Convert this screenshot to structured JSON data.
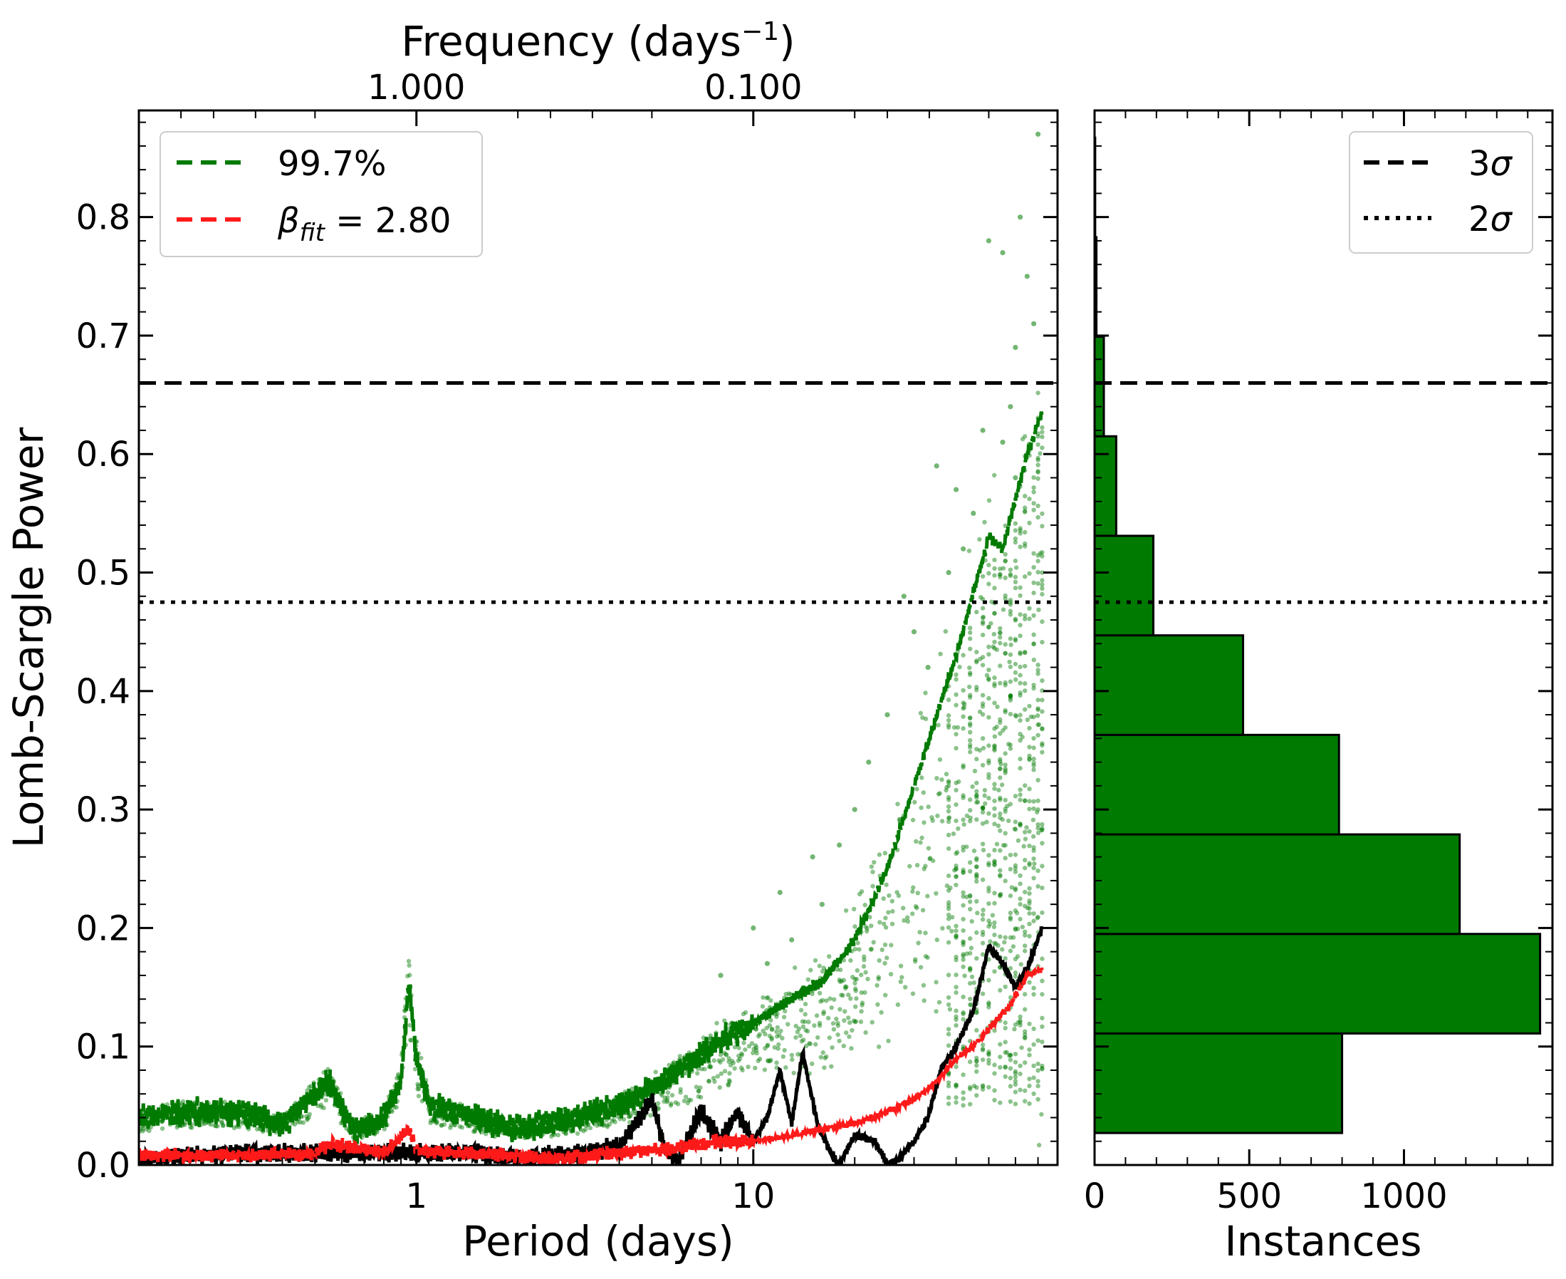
{
  "colors": {
    "green": "#007a00",
    "red": "#ff1a1a",
    "black": "#000000",
    "white": "#ffffff"
  },
  "chart_data": [
    {
      "type": "scatter",
      "title": "",
      "xlabel": "Period (days)",
      "ylabel": "Lomb-Scargle Power",
      "xscale": "log",
      "xlim": [
        0.15,
        80
      ],
      "ylim": [
        0,
        0.89
      ],
      "xticks": [
        {
          "value": 1,
          "label": "1"
        },
        {
          "value": 10,
          "label": "10"
        }
      ],
      "yticks": [
        {
          "value": 0.0,
          "label": "0.0"
        },
        {
          "value": 0.1,
          "label": "0.1"
        },
        {
          "value": 0.2,
          "label": "0.2"
        },
        {
          "value": 0.3,
          "label": "0.3"
        },
        {
          "value": 0.4,
          "label": "0.4"
        },
        {
          "value": 0.5,
          "label": "0.5"
        },
        {
          "value": 0.6,
          "label": "0.6"
        },
        {
          "value": 0.7,
          "label": "0.7"
        },
        {
          "value": 0.8,
          "label": "0.8"
        }
      ],
      "top_axis": {
        "label": "Frequency (days",
        "label_exponent": "−1",
        "label_suffix": ")",
        "ticks": [
          {
            "period": 1,
            "label": "1.000"
          },
          {
            "period": 10,
            "label": "0.100"
          }
        ]
      },
      "legend": {
        "position": "top-left",
        "entries": [
          {
            "label": "99.7%",
            "color": "#007a00",
            "style": "dashed"
          },
          {
            "symbol": "β",
            "subscript": "fit",
            "text": " = 2.80",
            "color": "#ff1a1a",
            "style": "dashed"
          }
        ]
      },
      "hlines": [
        {
          "name": "3-sigma",
          "y": 0.66,
          "style": "dashed",
          "color": "#000000"
        },
        {
          "name": "2-sigma",
          "y": 0.475,
          "style": "dotted",
          "color": "#000000"
        }
      ],
      "series": [
        {
          "name": "99.7% threshold",
          "color": "#007a00",
          "style": "dashed",
          "points": [
            [
              0.15,
              0.04
            ],
            [
              0.2,
              0.045
            ],
            [
              0.3,
              0.045
            ],
            [
              0.4,
              0.035
            ],
            [
              0.5,
              0.06
            ],
            [
              0.55,
              0.07
            ],
            [
              0.65,
              0.03
            ],
            [
              0.8,
              0.04
            ],
            [
              0.9,
              0.07
            ],
            [
              0.95,
              0.155
            ],
            [
              1.0,
              0.09
            ],
            [
              1.1,
              0.05
            ],
            [
              1.5,
              0.04
            ],
            [
              2.0,
              0.03
            ],
            [
              3.0,
              0.04
            ],
            [
              4.0,
              0.05
            ],
            [
              5.0,
              0.065
            ],
            [
              6.0,
              0.08
            ],
            [
              8.0,
              0.105
            ],
            [
              10.0,
              0.12
            ],
            [
              13.0,
              0.14
            ],
            [
              16.0,
              0.155
            ],
            [
              20.0,
              0.19
            ],
            [
              25.0,
              0.25
            ],
            [
              30.0,
              0.32
            ],
            [
              40.0,
              0.43
            ],
            [
              50.0,
              0.53
            ],
            [
              55.0,
              0.52
            ],
            [
              65.0,
              0.6
            ],
            [
              72.0,
              0.635
            ]
          ]
        },
        {
          "name": "beta_fit model",
          "color": "#ff1a1a",
          "style": "dashed",
          "points": [
            [
              0.15,
              0.008
            ],
            [
              0.3,
              0.008
            ],
            [
              0.5,
              0.01
            ],
            [
              0.55,
              0.018
            ],
            [
              0.8,
              0.01
            ],
            [
              0.95,
              0.03
            ],
            [
              1.0,
              0.012
            ],
            [
              1.5,
              0.01
            ],
            [
              2.5,
              0.005
            ],
            [
              4.0,
              0.01
            ],
            [
              6.0,
              0.015
            ],
            [
              8.0,
              0.02
            ],
            [
              10.0,
              0.02
            ],
            [
              13.0,
              0.025
            ],
            [
              16.0,
              0.03
            ],
            [
              20.0,
              0.035
            ],
            [
              25.0,
              0.045
            ],
            [
              30.0,
              0.055
            ],
            [
              35.0,
              0.07
            ],
            [
              40.0,
              0.09
            ],
            [
              45.0,
              0.1
            ],
            [
              50.0,
              0.115
            ],
            [
              58.0,
              0.135
            ],
            [
              65.0,
              0.16
            ],
            [
              72.0,
              0.165
            ]
          ]
        },
        {
          "name": "observed periodogram",
          "color": "#000000",
          "style": "solid",
          "points": [
            [
              0.15,
              0.005
            ],
            [
              0.3,
              0.01
            ],
            [
              0.5,
              0.01
            ],
            [
              1.0,
              0.01
            ],
            [
              1.5,
              0.01
            ],
            [
              2.0,
              0.005
            ],
            [
              3.0,
              0.01
            ],
            [
              4.0,
              0.015
            ],
            [
              5.0,
              0.055
            ],
            [
              5.5,
              0.01
            ],
            [
              6.0,
              0.005
            ],
            [
              7.0,
              0.045
            ],
            [
              8.0,
              0.02
            ],
            [
              9.0,
              0.045
            ],
            [
              10.0,
              0.02
            ],
            [
              11.0,
              0.04
            ],
            [
              12.0,
              0.08
            ],
            [
              13.0,
              0.035
            ],
            [
              14.0,
              0.095
            ],
            [
              15.5,
              0.035
            ],
            [
              17.0,
              0.01
            ],
            [
              18.0,
              0.0
            ],
            [
              20.0,
              0.025
            ],
            [
              23.0,
              0.02
            ],
            [
              25.0,
              0.0
            ],
            [
              27.0,
              0.005
            ],
            [
              30.0,
              0.02
            ],
            [
              33.0,
              0.04
            ],
            [
              36.0,
              0.08
            ],
            [
              40.0,
              0.1
            ],
            [
              45.0,
              0.13
            ],
            [
              50.0,
              0.185
            ],
            [
              55.0,
              0.17
            ],
            [
              60.0,
              0.15
            ],
            [
              65.0,
              0.165
            ],
            [
              72.0,
              0.2
            ]
          ]
        },
        {
          "name": "simulated peak powers",
          "color": "#007a00",
          "type": "scatter",
          "points": [
            [
              35,
              0.59
            ],
            [
              40,
              0.57
            ],
            [
              50,
              0.78
            ],
            [
              55,
              0.77
            ],
            [
              60,
              0.69
            ],
            [
              62,
              0.8
            ],
            [
              65,
              0.75
            ],
            [
              70,
              0.87
            ],
            [
              28,
              0.48
            ],
            [
              25,
              0.38
            ],
            [
              30,
              0.45
            ],
            [
              22,
              0.34
            ],
            [
              18,
              0.27
            ],
            [
              15,
              0.26
            ],
            [
              12,
              0.23
            ],
            [
              10,
              0.2
            ],
            [
              8,
              0.16
            ],
            [
              45,
              0.55
            ],
            [
              48,
              0.62
            ],
            [
              58,
              0.64
            ],
            [
              68,
              0.71
            ],
            [
              38,
              0.5
            ],
            [
              42,
              0.52
            ],
            [
              33,
              0.42
            ],
            [
              55,
              0.61
            ],
            [
              60,
              0.58
            ],
            [
              20,
              0.3
            ],
            [
              16,
              0.22
            ],
            [
              13,
              0.19
            ],
            [
              11,
              0.17
            ]
          ]
        }
      ]
    },
    {
      "type": "bar",
      "orientation": "horizontal",
      "title": "",
      "xlabel": "Instances",
      "ylabel": "",
      "xlim": [
        0,
        1480
      ],
      "ylim": [
        0,
        0.89
      ],
      "xticks": [
        {
          "value": 0,
          "label": "0"
        },
        {
          "value": 500,
          "label": "500"
        },
        {
          "value": 1000,
          "label": "1000"
        }
      ],
      "bins": [
        {
          "y0": 0.027,
          "y1": 0.111,
          "count": 800
        },
        {
          "y0": 0.111,
          "y1": 0.195,
          "count": 1440
        },
        {
          "y0": 0.195,
          "y1": 0.279,
          "count": 1180
        },
        {
          "y0": 0.279,
          "y1": 0.363,
          "count": 790
        },
        {
          "y0": 0.363,
          "y1": 0.447,
          "count": 480
        },
        {
          "y0": 0.447,
          "y1": 0.531,
          "count": 190
        },
        {
          "y0": 0.531,
          "y1": 0.615,
          "count": 70
        },
        {
          "y0": 0.615,
          "y1": 0.699,
          "count": 30
        },
        {
          "y0": 0.699,
          "y1": 0.783,
          "count": 6
        },
        {
          "y0": 0.783,
          "y1": 0.867,
          "count": 2
        }
      ],
      "bar_color": "#007a00",
      "hlines": [
        {
          "name": "3-sigma",
          "y": 0.66,
          "style": "dashed",
          "color": "#000000"
        },
        {
          "name": "2-sigma",
          "y": 0.475,
          "style": "dotted",
          "color": "#000000"
        }
      ],
      "legend": {
        "position": "top-right",
        "entries": [
          {
            "symbol": "σ",
            "prefix": "3",
            "style": "dashed"
          },
          {
            "symbol": "σ",
            "prefix": "2",
            "style": "dotted"
          }
        ]
      }
    }
  ]
}
